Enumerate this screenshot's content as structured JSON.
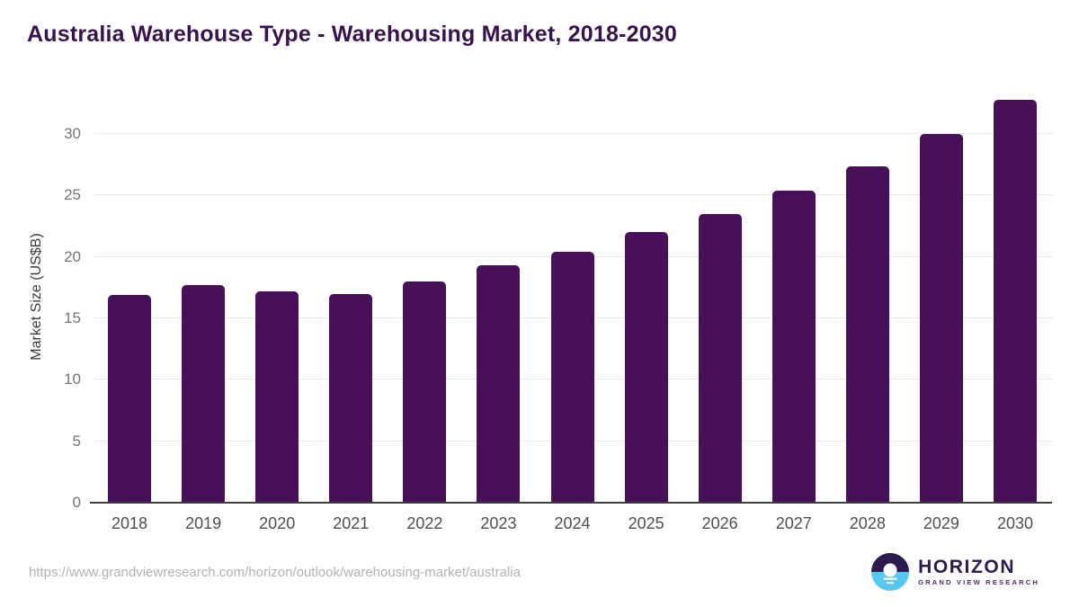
{
  "header": {
    "title": "Australia Warehouse Type - Warehousing Market, 2018-2030"
  },
  "chart_data": {
    "type": "bar",
    "title": "Australia Warehouse Type - Warehousing Market, 2018-2030",
    "categories": [
      "2018",
      "2019",
      "2020",
      "2021",
      "2022",
      "2023",
      "2024",
      "2025",
      "2026",
      "2027",
      "2028",
      "2029",
      "2030"
    ],
    "values": [
      16.9,
      17.7,
      17.2,
      17.0,
      18.0,
      19.3,
      20.4,
      22.0,
      23.5,
      25.4,
      27.4,
      30.0,
      32.8
    ],
    "xlabel": "",
    "ylabel": "Market Size (US$B)",
    "yticks": [
      0,
      5,
      10,
      15,
      20,
      25,
      30
    ],
    "ylim": [
      0,
      33.6
    ],
    "grid": true,
    "legend": "none",
    "bar_color": "#471059"
  },
  "colors": {
    "title": "#3a1150",
    "bar": "#471059",
    "gridline": "#e8e8e8",
    "axis_line": "#3d3d3d",
    "brand_purple": "#2d1a4e",
    "brand_sub_purple": "#4b2a6b",
    "brand_blue": "#56c7f2"
  },
  "footer": {
    "source_url": "https://www.grandviewresearch.com/horizon/outlook/warehousing-market/australia",
    "logo": {
      "brand": "HORIZON",
      "sub": "GRAND VIEW RESEARCH"
    }
  }
}
